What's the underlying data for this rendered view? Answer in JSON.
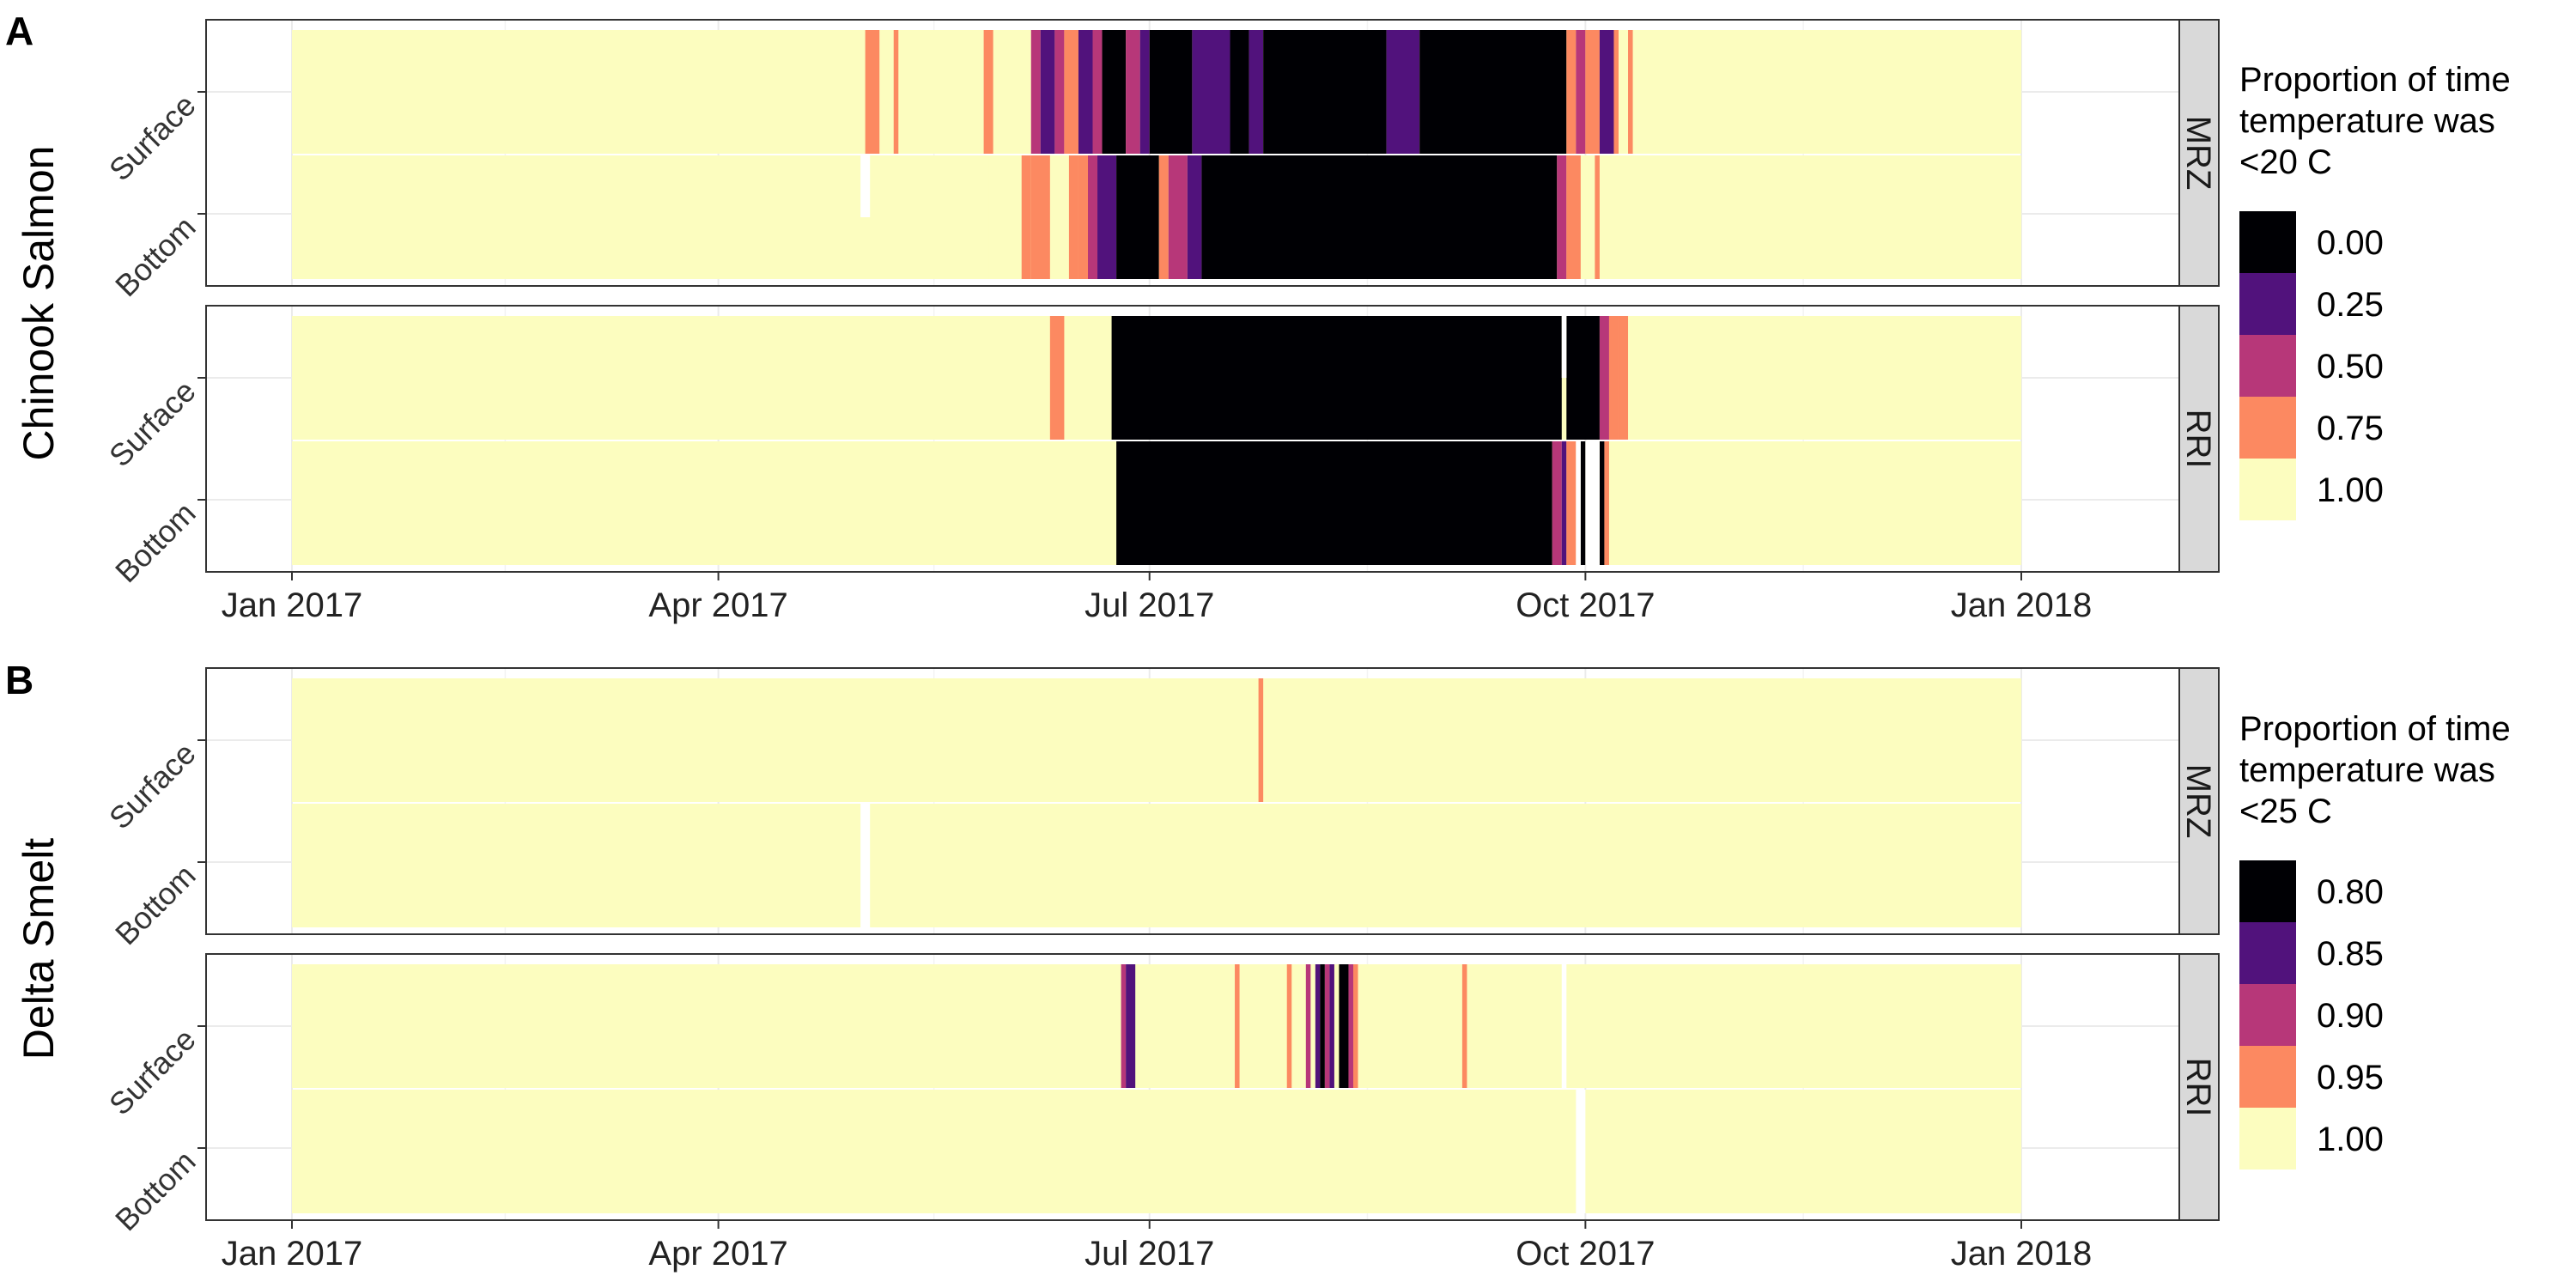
{
  "chart_data": [
    {
      "type": "heatmap",
      "panel_label": "A",
      "species": "Chinook Salmon",
      "legend": {
        "title": [
          "Proportion of time",
          "temperature was",
          "<20 C"
        ],
        "labels": [
          "0.00",
          "0.25",
          "0.50",
          "0.75",
          "1.00"
        ],
        "colors": [
          "#000004",
          "#51127c",
          "#b73779",
          "#fc8961",
          "#fcfdbf"
        ],
        "range": [
          0,
          1
        ],
        "type": "binned",
        "placement": "right"
      },
      "x_ticks": [
        {
          "label": "Jan 2017",
          "date": "2017-01-01"
        },
        {
          "label": "Apr 2017",
          "date": "2017-04-01"
        },
        {
          "label": "Jul 2017",
          "date": "2017-07-01"
        },
        {
          "label": "Oct 2017",
          "date": "2017-10-01"
        },
        {
          "label": "Jan 2018",
          "date": "2018-01-01"
        }
      ],
      "y_categories": [
        "Surface",
        "Bottom"
      ],
      "default_value": 1.0,
      "facets": [
        {
          "station": "MRZ",
          "rows": [
            {
              "depth": "Surface",
              "gaps": [],
              "runs": [
                {
                  "start": "2017-05-02",
                  "end": "2017-05-05",
                  "value": 0.8
                },
                {
                  "start": "2017-05-08",
                  "end": "2017-05-09",
                  "value": 0.85
                },
                {
                  "start": "2017-05-20",
                  "end": "2017-05-25",
                  "value": 0.88
                },
                {
                  "start": "2017-05-27",
                  "end": "2017-05-29",
                  "value": 0.85
                },
                {
                  "start": "2017-06-06",
                  "end": "2017-06-08",
                  "value": 0.6
                },
                {
                  "start": "2017-06-08",
                  "end": "2017-06-11",
                  "value": 0.3
                },
                {
                  "start": "2017-06-11",
                  "end": "2017-06-13",
                  "value": 0.5
                },
                {
                  "start": "2017-06-13",
                  "end": "2017-06-16",
                  "value": 0.75
                },
                {
                  "start": "2017-06-16",
                  "end": "2017-06-19",
                  "value": 0.3
                },
                {
                  "start": "2017-06-19",
                  "end": "2017-06-21",
                  "value": 0.6
                },
                {
                  "start": "2017-06-21",
                  "end": "2017-06-26",
                  "value": 0.1
                },
                {
                  "start": "2017-06-26",
                  "end": "2017-06-29",
                  "value": 0.5
                },
                {
                  "start": "2017-06-29",
                  "end": "2017-07-01",
                  "value": 0.2
                },
                {
                  "start": "2017-07-01",
                  "end": "2017-07-10",
                  "value": 0.05
                },
                {
                  "start": "2017-07-10",
                  "end": "2017-07-18",
                  "value": 0.25
                },
                {
                  "start": "2017-07-18",
                  "end": "2017-07-22",
                  "value": 0.05
                },
                {
                  "start": "2017-07-22",
                  "end": "2017-07-25",
                  "value": 0.2
                },
                {
                  "start": "2017-07-25",
                  "end": "2017-08-20",
                  "value": 0.0
                },
                {
                  "start": "2017-08-20",
                  "end": "2017-08-27",
                  "value": 0.25
                },
                {
                  "start": "2017-08-27",
                  "end": "2017-09-27",
                  "value": 0.0
                },
                {
                  "start": "2017-09-27",
                  "end": "2017-09-29",
                  "value": 0.75
                },
                {
                  "start": "2017-09-29",
                  "end": "2017-10-01",
                  "value": 0.5
                },
                {
                  "start": "2017-10-01",
                  "end": "2017-10-04",
                  "value": 0.75
                },
                {
                  "start": "2017-10-04",
                  "end": "2017-10-07",
                  "value": 0.35
                },
                {
                  "start": "2017-10-07",
                  "end": "2017-10-08",
                  "value": 0.7
                },
                {
                  "start": "2017-10-10",
                  "end": "2017-10-11",
                  "value": 0.85
                }
              ]
            },
            {
              "depth": "Bottom",
              "gaps": [
                {
                  "start": "2017-05-01",
                  "end": "2017-05-03",
                  "from": 0.0,
                  "to": 0.5
                }
              ],
              "runs": [
                {
                  "start": "2017-05-28",
                  "end": "2017-05-29",
                  "value": 0.88
                },
                {
                  "start": "2017-06-04",
                  "end": "2017-06-06",
                  "value": 0.8
                },
                {
                  "start": "2017-06-06",
                  "end": "2017-06-10",
                  "value": 0.75
                },
                {
                  "start": "2017-06-14",
                  "end": "2017-06-16",
                  "value": 0.85
                },
                {
                  "start": "2017-06-16",
                  "end": "2017-06-18",
                  "value": 0.75
                },
                {
                  "start": "2017-06-18",
                  "end": "2017-06-20",
                  "value": 0.5
                },
                {
                  "start": "2017-06-20",
                  "end": "2017-06-24",
                  "value": 0.15
                },
                {
                  "start": "2017-06-24",
                  "end": "2017-07-03",
                  "value": 0.05
                },
                {
                  "start": "2017-07-03",
                  "end": "2017-07-05",
                  "value": 0.75
                },
                {
                  "start": "2017-07-05",
                  "end": "2017-07-09",
                  "value": 0.6
                },
                {
                  "start": "2017-07-09",
                  "end": "2017-07-12",
                  "value": 0.2
                },
                {
                  "start": "2017-07-12",
                  "end": "2017-09-25",
                  "value": 0.0
                },
                {
                  "start": "2017-09-25",
                  "end": "2017-09-27",
                  "value": 0.5
                },
                {
                  "start": "2017-09-27",
                  "end": "2017-09-30",
                  "value": 0.8
                },
                {
                  "start": "2017-10-03",
                  "end": "2017-10-04",
                  "value": 0.85
                }
              ]
            }
          ]
        },
        {
          "station": "RRI",
          "rows": [
            {
              "depth": "Surface",
              "gaps": [
                {
                  "start": "2017-09-26",
                  "end": "2017-09-27",
                  "from": 0.0,
                  "to": 0.5
                }
              ],
              "runs": [
                {
                  "start": "2017-06-10",
                  "end": "2017-06-13",
                  "value": 0.85
                },
                {
                  "start": "2017-06-23",
                  "end": "2017-09-26",
                  "value": 0.0
                },
                {
                  "start": "2017-09-27",
                  "end": "2017-10-04",
                  "value": 0.0
                },
                {
                  "start": "2017-10-04",
                  "end": "2017-10-06",
                  "value": 0.4
                },
                {
                  "start": "2017-10-06",
                  "end": "2017-10-08",
                  "value": 0.75
                },
                {
                  "start": "2017-10-08",
                  "end": "2017-10-10",
                  "value": 0.85
                }
              ]
            },
            {
              "depth": "Bottom",
              "gaps": [
                {
                  "start": "2017-09-29",
                  "end": "2017-09-30",
                  "from": 0.0,
                  "to": 1.0
                },
                {
                  "start": "2017-10-01",
                  "end": "2017-10-04",
                  "from": 0.0,
                  "to": 1.0
                }
              ],
              "runs": [
                {
                  "start": "2017-06-24",
                  "end": "2017-09-24",
                  "value": 0.0
                },
                {
                  "start": "2017-09-24",
                  "end": "2017-09-26",
                  "value": 0.6
                },
                {
                  "start": "2017-09-26",
                  "end": "2017-09-27",
                  "value": 0.3
                },
                {
                  "start": "2017-09-27",
                  "end": "2017-09-29",
                  "value": 0.75
                },
                {
                  "start": "2017-09-30",
                  "end": "2017-10-01",
                  "value": 0.0
                },
                {
                  "start": "2017-10-04",
                  "end": "2017-10-05",
                  "value": 0.0
                },
                {
                  "start": "2017-10-05",
                  "end": "2017-10-06",
                  "value": 0.75
                }
              ]
            }
          ]
        }
      ]
    },
    {
      "type": "heatmap",
      "panel_label": "B",
      "species": "Delta Smelt",
      "legend": {
        "title": [
          "Proportion of time",
          "temperature was",
          "<25 C"
        ],
        "labels": [
          "0.80",
          "0.85",
          "0.90",
          "0.95",
          "1.00"
        ],
        "colors": [
          "#000004",
          "#51127c",
          "#b73779",
          "#fc8961",
          "#fcfdbf"
        ],
        "range": [
          0.8,
          1
        ],
        "type": "binned",
        "placement": "right"
      },
      "x_ticks": [
        {
          "label": "Jan 2017",
          "date": "2017-01-01"
        },
        {
          "label": "Apr 2017",
          "date": "2017-04-01"
        },
        {
          "label": "Jul 2017",
          "date": "2017-07-01"
        },
        {
          "label": "Oct 2017",
          "date": "2017-10-01"
        },
        {
          "label": "Jan 2018",
          "date": "2018-01-01"
        }
      ],
      "y_categories": [
        "Surface",
        "Bottom"
      ],
      "default_value": 1.0,
      "facets": [
        {
          "station": "MRZ",
          "rows": [
            {
              "depth": "Surface",
              "gaps": [],
              "runs": [
                {
                  "start": "2017-07-24",
                  "end": "2017-07-25",
                  "value": 0.95
                }
              ]
            },
            {
              "depth": "Bottom",
              "gaps": [
                {
                  "start": "2017-05-01",
                  "end": "2017-05-03",
                  "from": 0.0,
                  "to": 1.0
                }
              ],
              "runs": []
            }
          ]
        },
        {
          "station": "RRI",
          "rows": [
            {
              "depth": "Surface",
              "gaps": [
                {
                  "start": "2017-09-26",
                  "end": "2017-09-27",
                  "from": 0.0,
                  "to": 1.0
                }
              ],
              "runs": [
                {
                  "start": "2017-06-25",
                  "end": "2017-06-26",
                  "value": 0.9
                },
                {
                  "start": "2017-06-26",
                  "end": "2017-06-28",
                  "value": 0.85
                },
                {
                  "start": "2017-07-19",
                  "end": "2017-07-20",
                  "value": 0.95
                },
                {
                  "start": "2017-07-30",
                  "end": "2017-07-31",
                  "value": 0.95
                },
                {
                  "start": "2017-08-03",
                  "end": "2017-08-04",
                  "value": 0.9
                },
                {
                  "start": "2017-08-05",
                  "end": "2017-08-06",
                  "value": 0.85
                },
                {
                  "start": "2017-08-06",
                  "end": "2017-08-07",
                  "value": 0.8
                },
                {
                  "start": "2017-08-07",
                  "end": "2017-08-08",
                  "value": 0.9
                },
                {
                  "start": "2017-08-08",
                  "end": "2017-08-09",
                  "value": 0.85
                },
                {
                  "start": "2017-08-10",
                  "end": "2017-08-12",
                  "value": 0.8
                },
                {
                  "start": "2017-08-12",
                  "end": "2017-08-13",
                  "value": 0.9
                },
                {
                  "start": "2017-08-13",
                  "end": "2017-08-14",
                  "value": 0.95
                },
                {
                  "start": "2017-09-05",
                  "end": "2017-09-06",
                  "value": 0.95
                }
              ]
            },
            {
              "depth": "Bottom",
              "gaps": [
                {
                  "start": "2017-09-29",
                  "end": "2017-10-01",
                  "from": 0.0,
                  "to": 1.0
                }
              ],
              "runs": []
            }
          ]
        }
      ]
    }
  ]
}
